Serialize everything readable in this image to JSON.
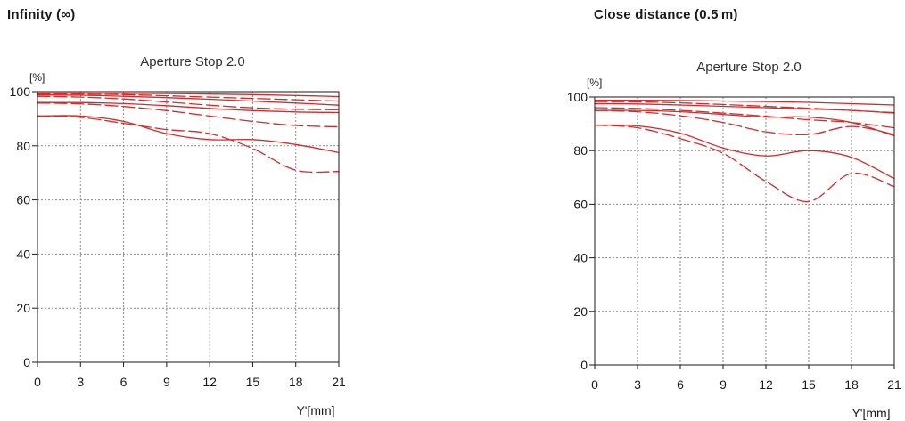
{
  "headings": {
    "left": "Infinity (∞)",
    "right": "Close distance (0.5 m)"
  },
  "colors": {
    "curve": "#d62a2a",
    "axis": "#1a1a1a",
    "grid": "#8a8a8a"
  },
  "chart_data": [
    {
      "type": "line",
      "title": "Aperture Stop 2.0",
      "ylabel": "[%]",
      "xlabel": "Y'[mm]",
      "xlim": [
        0,
        21
      ],
      "ylim": [
        0,
        100
      ],
      "xticks": [
        0,
        3,
        6,
        9,
        12,
        15,
        18,
        21
      ],
      "yticks": [
        0,
        20,
        40,
        60,
        80,
        100
      ],
      "grid": true,
      "series": [
        {
          "style": "solid",
          "x": [
            0,
            3,
            6,
            9,
            12,
            15,
            18,
            21
          ],
          "y": [
            99.5,
            99.5,
            99.4,
            99.3,
            99.1,
            98.9,
            98.6,
            98.2
          ]
        },
        {
          "style": "dashed",
          "x": [
            0,
            3,
            6,
            9,
            12,
            15,
            18,
            21
          ],
          "y": [
            99.2,
            99.1,
            98.9,
            98.5,
            98.0,
            97.5,
            97.0,
            96.5
          ]
        },
        {
          "style": "solid",
          "x": [
            0,
            3,
            6,
            9,
            12,
            15,
            18,
            21
          ],
          "y": [
            98.8,
            98.7,
            98.3,
            97.8,
            97.2,
            96.5,
            95.8,
            95.0
          ]
        },
        {
          "style": "dashed",
          "x": [
            0,
            3,
            6,
            9,
            12,
            15,
            18,
            21
          ],
          "y": [
            98.3,
            98.0,
            97.3,
            96.2,
            95.0,
            94.0,
            93.5,
            93.3
          ]
        },
        {
          "style": "solid",
          "x": [
            0,
            3,
            6,
            9,
            12,
            15,
            18,
            21
          ],
          "y": [
            96.0,
            96.0,
            95.6,
            94.8,
            93.8,
            93.0,
            92.5,
            92.3
          ]
        },
        {
          "style": "dashed",
          "x": [
            0,
            3,
            6,
            9,
            12,
            15,
            18,
            21
          ],
          "y": [
            95.8,
            95.5,
            94.5,
            93.0,
            91.0,
            89.0,
            87.5,
            87.0
          ]
        },
        {
          "style": "solid",
          "x": [
            0,
            3,
            6,
            9,
            12,
            15,
            18,
            21
          ],
          "y": [
            91.0,
            91.0,
            89.0,
            84.5,
            82.3,
            82.3,
            80.5,
            77.5
          ]
        },
        {
          "style": "dashed",
          "x": [
            0,
            3,
            6,
            9,
            12,
            15,
            18,
            21
          ],
          "y": [
            91.0,
            90.5,
            88.3,
            86.0,
            84.5,
            79.0,
            71.0,
            70.5
          ]
        }
      ]
    },
    {
      "type": "line",
      "title": "Aperture Stop 2.0",
      "ylabel": "[%]",
      "xlabel": "Y'[mm]",
      "xlim": [
        0,
        21
      ],
      "ylim": [
        0,
        100
      ],
      "xticks": [
        0,
        3,
        6,
        9,
        12,
        15,
        18,
        21
      ],
      "yticks": [
        0,
        20,
        40,
        60,
        80,
        100
      ],
      "grid": true,
      "series": [
        {
          "style": "solid",
          "x": [
            0,
            3,
            6,
            9,
            12,
            15,
            18,
            21
          ],
          "y": [
            98.8,
            98.8,
            98.7,
            98.5,
            98.3,
            98.0,
            97.5,
            97.0
          ]
        },
        {
          "style": "dashed",
          "x": [
            0,
            3,
            6,
            9,
            12,
            15,
            18,
            21
          ],
          "y": [
            98.3,
            98.2,
            97.8,
            97.2,
            96.5,
            95.8,
            95.0,
            94.2
          ]
        },
        {
          "style": "solid",
          "x": [
            0,
            3,
            6,
            9,
            12,
            15,
            18,
            21
          ],
          "y": [
            97.5,
            97.4,
            97.0,
            96.5,
            96.0,
            95.5,
            95.0,
            94.0
          ]
        },
        {
          "style": "dashed",
          "x": [
            0,
            3,
            6,
            9,
            12,
            15,
            18,
            21
          ],
          "y": [
            96.0,
            95.7,
            95.0,
            94.0,
            92.8,
            91.5,
            90.5,
            88.5
          ]
        },
        {
          "style": "solid",
          "x": [
            0,
            3,
            6,
            9,
            12,
            15,
            18,
            21
          ],
          "y": [
            95.0,
            95.0,
            94.5,
            93.5,
            92.5,
            92.5,
            90.5,
            85.5
          ]
        },
        {
          "style": "dashed",
          "x": [
            0,
            3,
            6,
            9,
            12,
            15,
            18,
            21
          ],
          "y": [
            95.0,
            94.5,
            93.0,
            90.5,
            87.0,
            86.0,
            89.0,
            86.0
          ]
        },
        {
          "style": "solid",
          "x": [
            0,
            3,
            6,
            9,
            12,
            15,
            18,
            21
          ],
          "y": [
            89.5,
            89.2,
            86.5,
            81.0,
            78.0,
            80.0,
            77.5,
            69.5
          ]
        },
        {
          "style": "dashed",
          "x": [
            0,
            3,
            6,
            9,
            12,
            15,
            18,
            21
          ],
          "y": [
            89.5,
            88.5,
            84.5,
            79.0,
            68.5,
            61.0,
            71.5,
            66.5
          ]
        }
      ]
    }
  ]
}
